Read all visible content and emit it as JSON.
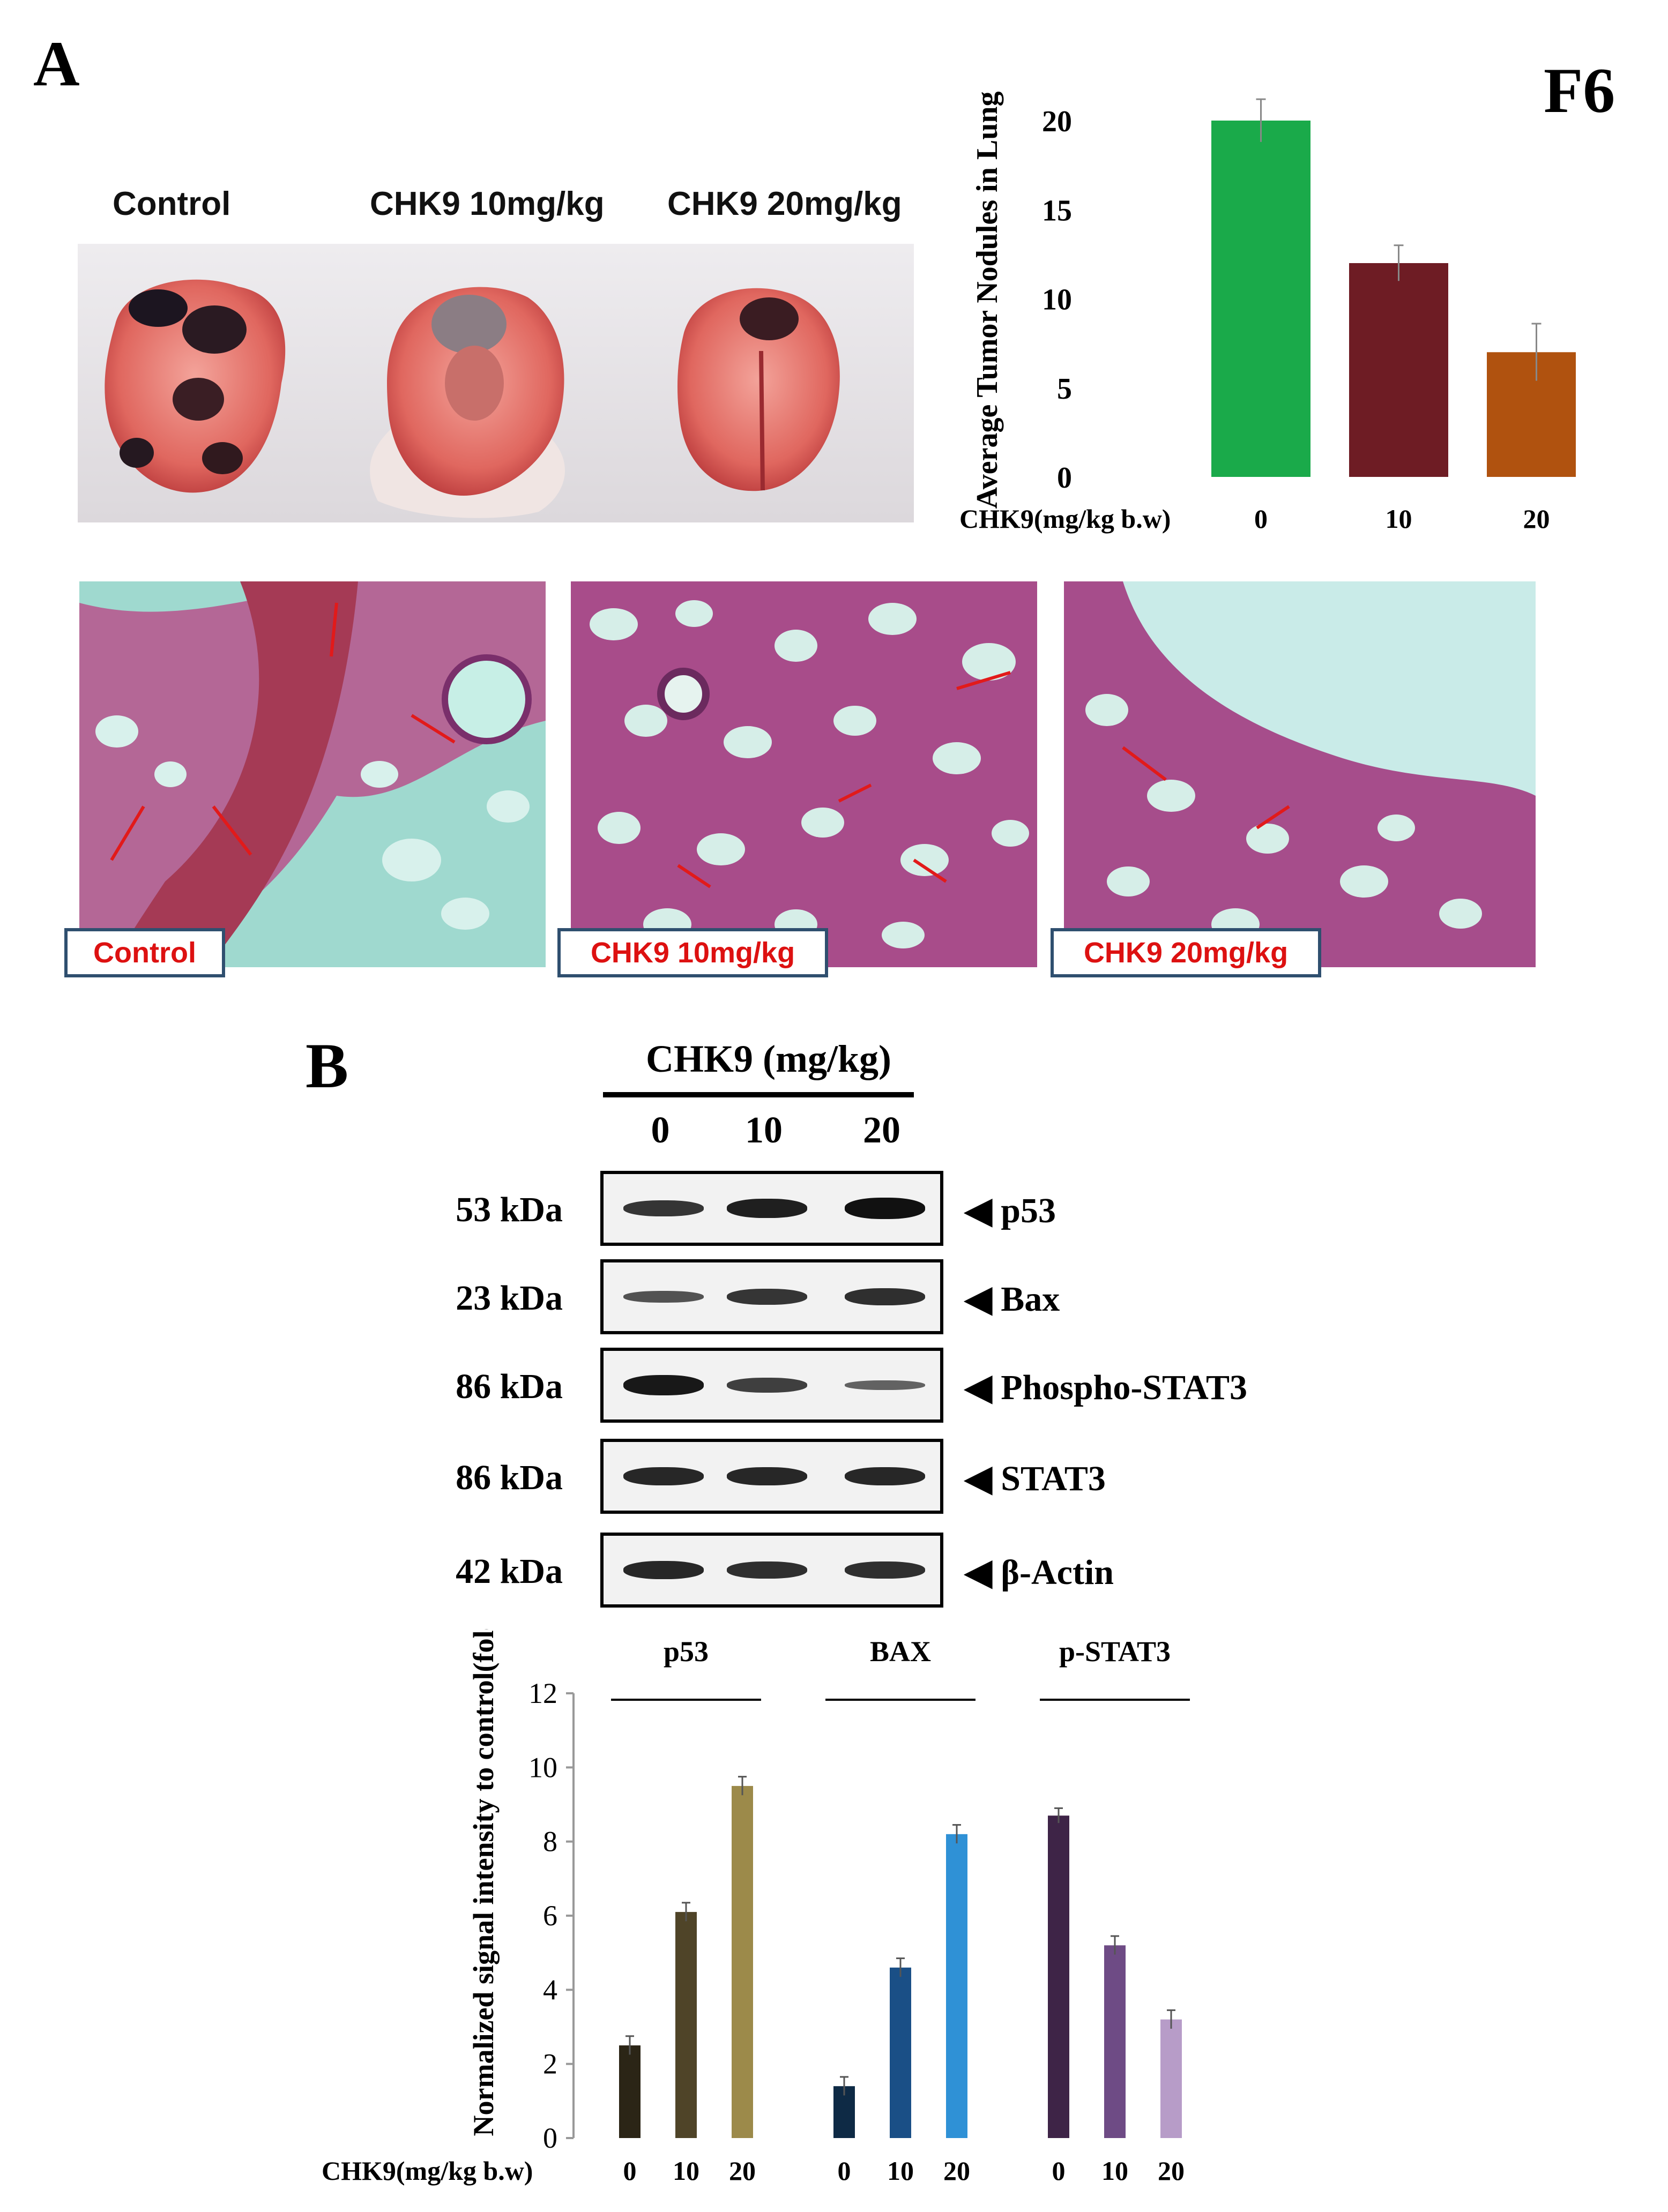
{
  "panel_a": {
    "letter": "A",
    "figure_id": "F6",
    "lung_labels": [
      "Control",
      "CHK9 10mg/kg",
      "CHK9 20mg/kg"
    ],
    "histology_labels": [
      "Control",
      "CHK9 10mg/kg",
      "CHK9 20mg/kg"
    ]
  },
  "panel_b": {
    "letter": "B",
    "blot_header": "CHK9 (mg/kg)",
    "lanes": [
      "0",
      "10",
      "20"
    ],
    "blots": [
      {
        "kda": "53 kDa",
        "protein": "p53",
        "intensity": [
          0.75,
          0.9,
          1.0
        ]
      },
      {
        "kda": "23 kDa",
        "protein": "Bax",
        "intensity": [
          0.55,
          0.75,
          0.8
        ]
      },
      {
        "kda": "86 kDa",
        "protein": "Phospho-STAT3",
        "intensity": [
          0.95,
          0.7,
          0.45
        ]
      },
      {
        "kda": "86 kDa",
        "protein": "STAT3",
        "intensity": [
          0.85,
          0.85,
          0.85
        ]
      },
      {
        "kda": "42 kDa",
        "protein": "β-Actin",
        "intensity": [
          0.85,
          0.8,
          0.8
        ]
      }
    ]
  },
  "chart_data": [
    {
      "type": "bar",
      "ylabel": "Average Tumor Nodules in Lung",
      "xlabel": "CHK9(mg/kg b.w)",
      "categories": [
        "0",
        "10",
        "20"
      ],
      "values": [
        20,
        12,
        7
      ],
      "errors": [
        1.2,
        1.0,
        1.6
      ],
      "colors": [
        "#1aaa4a",
        "#6e1c24",
        "#b0520f"
      ],
      "ylim": [
        0,
        20
      ],
      "yticks": [
        0,
        5,
        10,
        15,
        20
      ]
    },
    {
      "type": "bar",
      "ylabel": "Normalized signal intensity to control(folds)",
      "xlabel": "CHK9(mg/kg b.w)",
      "ylim": [
        0,
        12
      ],
      "yticks": [
        0,
        2,
        4,
        6,
        8,
        10,
        12
      ],
      "groups": [
        {
          "name": "p53",
          "categories": [
            "0",
            "10",
            "20"
          ],
          "values": [
            2.5,
            6.1,
            9.5
          ],
          "errors": [
            0.25,
            0.25,
            0.25
          ],
          "colors": [
            "#2b2516",
            "#4f4428",
            "#9c8a4a"
          ]
        },
        {
          "name": "BAX",
          "categories": [
            "0",
            "10",
            "20"
          ],
          "values": [
            1.4,
            4.6,
            8.2
          ],
          "errors": [
            0.25,
            0.25,
            0.25
          ],
          "colors": [
            "#0e2a45",
            "#1a4f86",
            "#2f91d6"
          ]
        },
        {
          "name": "p-STAT3",
          "categories": [
            "0",
            "10",
            "20"
          ],
          "values": [
            8.7,
            5.2,
            3.2
          ],
          "errors": [
            0.2,
            0.25,
            0.25
          ],
          "colors": [
            "#3e2447",
            "#6e4b85",
            "#b79cc8"
          ]
        }
      ]
    }
  ]
}
